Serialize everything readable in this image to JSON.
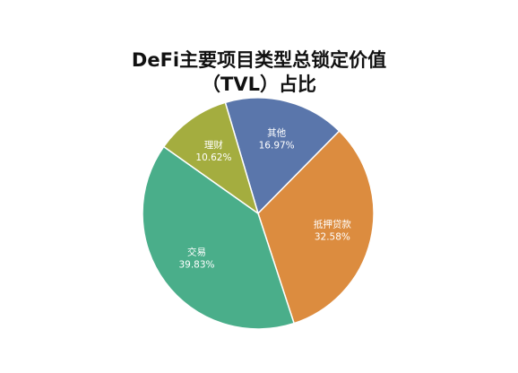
{
  "chart_data": {
    "type": "pie",
    "title": [
      "DeFi主要项目类型总锁定价值",
      "（TVL）占比"
    ],
    "categories": [
      "其他",
      "抵押贷款",
      "交易",
      "理财"
    ],
    "values": [
      16.97,
      32.58,
      39.83,
      10.62
    ],
    "value_labels": [
      "16.97%",
      "32.58%",
      "39.83%",
      "10.62%"
    ],
    "colors": [
      "#5a76ab",
      "#dc8c3f",
      "#4aae8a",
      "#a4ad3f"
    ]
  }
}
